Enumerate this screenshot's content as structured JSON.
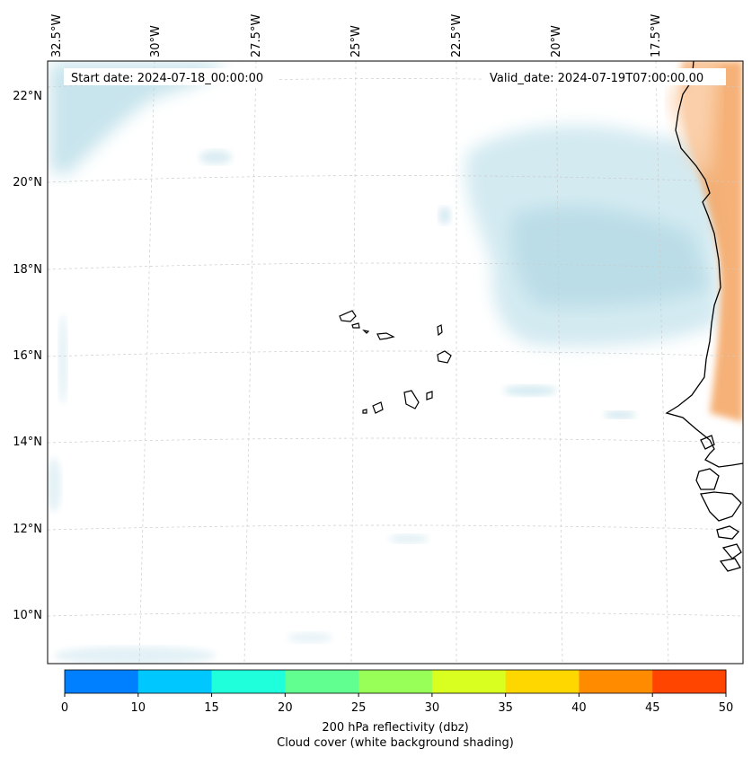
{
  "map": {
    "start_date": "Start date: 2024-07-18_00:00:00",
    "valid_date": "Valid_date: 2024-07-19T07:00:00.00",
    "lon_labels": [
      "32.5°W",
      "30°W",
      "27.5°W",
      "25°W",
      "22.5°W",
      "20°W",
      "17.5°W"
    ],
    "lat_labels": [
      "22°N",
      "20°N",
      "18°N",
      "16°N",
      "14°N",
      "12°N",
      "10°N"
    ],
    "ocean_color": "#ffffff",
    "cloud_color": "#add8e6",
    "land_shading_color": "#f4a460"
  },
  "colorbar": {
    "ticks": [
      "0",
      "10",
      "15",
      "20",
      "25",
      "30",
      "35",
      "40",
      "45",
      "50"
    ],
    "colors": [
      "#0080ff",
      "#00c8ff",
      "#20ffdc",
      "#60ff90",
      "#98ff58",
      "#d8ff20",
      "#ffd700",
      "#ff8c00",
      "#ff4500"
    ],
    "label_line1": "200 hPa reflectivity (dbz)",
    "label_line2": "Cloud cover (white background shading)"
  }
}
